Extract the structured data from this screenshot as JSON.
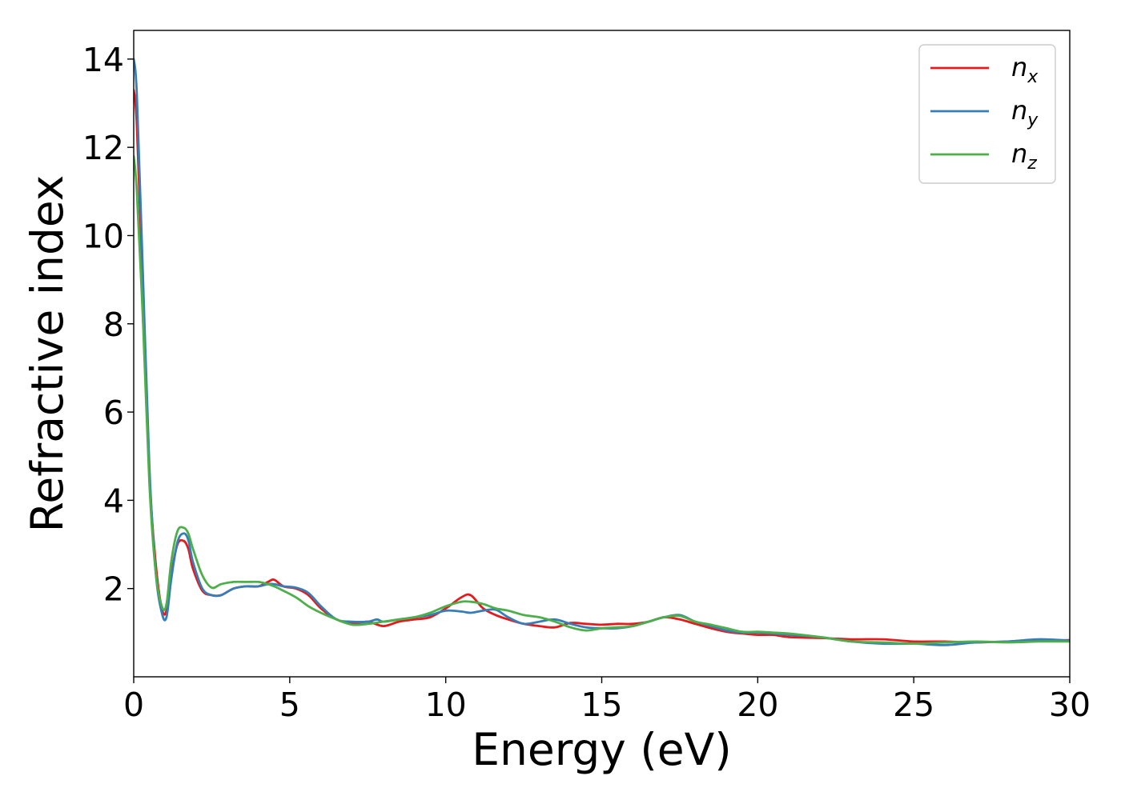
{
  "chart_data": {
    "type": "line",
    "xlabel": "Energy (eV)",
    "ylabel": "Refractive index",
    "xlim": [
      0,
      30
    ],
    "ylim": [
      0.0,
      14.65
    ],
    "xticks": [
      0,
      5,
      10,
      15,
      20,
      25,
      30
    ],
    "xtick_labels": [
      "0",
      "5",
      "10",
      "15",
      "20",
      "25",
      "30"
    ],
    "yticks": [
      2,
      4,
      6,
      8,
      10,
      12,
      14
    ],
    "ytick_labels": [
      "2",
      "4",
      "6",
      "8",
      "10",
      "12",
      "14"
    ],
    "grid": false,
    "legend_position": "top-right",
    "series": [
      {
        "name": "n",
        "sub": "x",
        "color": "#e41a1c",
        "x": [
          0,
          0.1,
          0.3,
          0.5,
          0.7,
          0.9,
          1.05,
          1.2,
          1.4,
          1.6,
          1.75,
          1.9,
          2.2,
          2.5,
          2.8,
          3.2,
          3.6,
          4.0,
          4.3,
          4.5,
          4.8,
          5.2,
          5.6,
          6.0,
          6.5,
          7.0,
          7.5,
          8.0,
          8.5,
          9.0,
          9.5,
          10.0,
          10.5,
          10.8,
          11.2,
          11.6,
          12.0,
          12.5,
          13.0,
          13.5,
          14.0,
          14.5,
          15.0,
          15.5,
          16.0,
          16.5,
          17.0,
          17.5,
          18.0,
          18.5,
          19.0,
          19.5,
          20.0,
          20.5,
          21.0,
          22.0,
          23.0,
          24.0,
          25.0,
          26.0,
          27.0,
          28.0,
          29.0,
          30.0
        ],
        "values": [
          13.3,
          12.5,
          8.6,
          4.6,
          2.6,
          1.55,
          1.5,
          2.3,
          3.0,
          3.08,
          2.9,
          2.45,
          1.95,
          1.85,
          1.85,
          2.0,
          2.05,
          2.05,
          2.15,
          2.2,
          2.05,
          2.0,
          1.85,
          1.55,
          1.3,
          1.2,
          1.25,
          1.15,
          1.25,
          1.3,
          1.35,
          1.55,
          1.8,
          1.85,
          1.55,
          1.4,
          1.3,
          1.2,
          1.15,
          1.12,
          1.22,
          1.2,
          1.18,
          1.2,
          1.2,
          1.25,
          1.35,
          1.3,
          1.2,
          1.1,
          1.02,
          0.98,
          0.95,
          0.95,
          0.9,
          0.88,
          0.85,
          0.85,
          0.8,
          0.8,
          0.78,
          0.8,
          0.82,
          0.83
        ]
      },
      {
        "name": "n",
        "sub": "y",
        "color": "#377eb8",
        "x": [
          0,
          0.1,
          0.3,
          0.5,
          0.7,
          0.9,
          1.05,
          1.2,
          1.4,
          1.6,
          1.75,
          1.9,
          2.2,
          2.5,
          2.8,
          3.2,
          3.6,
          4.0,
          4.3,
          4.5,
          4.8,
          5.2,
          5.6,
          6.0,
          6.5,
          7.0,
          7.5,
          7.8,
          8.0,
          8.5,
          9.0,
          9.5,
          10.0,
          10.5,
          10.8,
          11.2,
          11.6,
          12.0,
          12.5,
          13.0,
          13.5,
          14.0,
          14.5,
          15.0,
          15.5,
          16.0,
          16.5,
          17.0,
          17.5,
          18.0,
          18.5,
          19.0,
          19.5,
          20.0,
          20.5,
          21.0,
          22.0,
          23.0,
          24.0,
          25.0,
          26.0,
          27.0,
          28.0,
          29.0,
          30.0
        ],
        "values": [
          14.0,
          13.2,
          9.0,
          4.8,
          2.4,
          1.45,
          1.35,
          2.2,
          3.05,
          3.25,
          3.1,
          2.6,
          2.0,
          1.85,
          1.85,
          2.0,
          2.05,
          2.05,
          2.1,
          2.1,
          2.05,
          2.02,
          1.9,
          1.6,
          1.3,
          1.25,
          1.25,
          1.3,
          1.25,
          1.3,
          1.35,
          1.4,
          1.5,
          1.48,
          1.45,
          1.5,
          1.52,
          1.35,
          1.2,
          1.25,
          1.3,
          1.2,
          1.12,
          1.1,
          1.1,
          1.15,
          1.25,
          1.35,
          1.4,
          1.25,
          1.15,
          1.05,
          1.0,
          1.0,
          0.98,
          0.95,
          0.9,
          0.8,
          0.75,
          0.75,
          0.72,
          0.78,
          0.8,
          0.85,
          0.82
        ]
      },
      {
        "name": "n",
        "sub": "z",
        "color": "#4daf4a",
        "x": [
          0,
          0.1,
          0.3,
          0.5,
          0.7,
          0.9,
          1.05,
          1.2,
          1.4,
          1.6,
          1.75,
          1.9,
          2.2,
          2.5,
          2.8,
          3.2,
          3.6,
          4.0,
          4.3,
          4.5,
          4.8,
          5.2,
          5.6,
          6.0,
          6.5,
          7.0,
          7.5,
          8.0,
          8.5,
          9.0,
          9.5,
          10.0,
          10.5,
          10.8,
          11.2,
          11.6,
          12.0,
          12.5,
          13.0,
          13.5,
          14.0,
          14.5,
          15.0,
          15.5,
          16.0,
          16.5,
          17.0,
          17.5,
          18.0,
          18.5,
          19.0,
          19.5,
          20.0,
          20.5,
          21.0,
          22.0,
          23.0,
          24.0,
          25.0,
          26.0,
          27.0,
          28.0,
          29.0,
          30.0
        ],
        "values": [
          11.8,
          11.0,
          8.0,
          4.4,
          2.4,
          1.6,
          1.65,
          2.6,
          3.3,
          3.38,
          3.25,
          2.9,
          2.3,
          2.02,
          2.1,
          2.15,
          2.15,
          2.15,
          2.1,
          2.05,
          1.95,
          1.8,
          1.6,
          1.45,
          1.3,
          1.18,
          1.2,
          1.25,
          1.3,
          1.35,
          1.45,
          1.6,
          1.7,
          1.7,
          1.65,
          1.55,
          1.5,
          1.4,
          1.35,
          1.25,
          1.12,
          1.05,
          1.1,
          1.12,
          1.15,
          1.25,
          1.35,
          1.38,
          1.25,
          1.18,
          1.1,
          1.02,
          1.02,
          1.0,
          0.98,
          0.9,
          0.8,
          0.78,
          0.75,
          0.78,
          0.8,
          0.78,
          0.8,
          0.8
        ]
      }
    ]
  }
}
